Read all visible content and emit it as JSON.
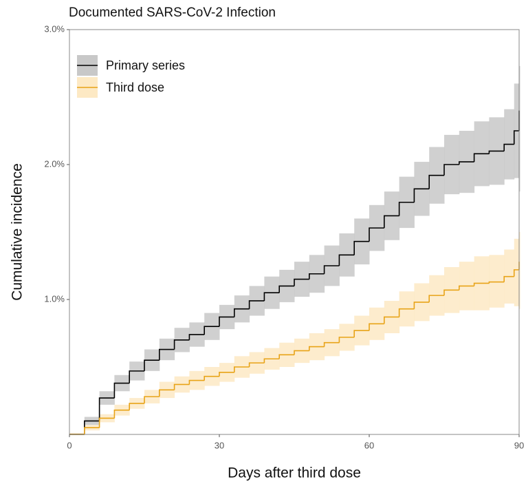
{
  "chart_data": {
    "type": "step",
    "title": "Documented SARS-CoV-2 Infection",
    "xlabel": "Days after third dose",
    "ylabel": "Cumulative incidence",
    "x": [
      0,
      3,
      6,
      9,
      12,
      15,
      18,
      21,
      24,
      27,
      30,
      33,
      36,
      39,
      42,
      45,
      48,
      51,
      54,
      57,
      60,
      63,
      66,
      69,
      72,
      75,
      78,
      81,
      84,
      87,
      89,
      90
    ],
    "series": [
      {
        "name": "Primary series",
        "color": "#000000",
        "band_color": "#c8c8c8",
        "values": [
          0,
          0.1,
          0.27,
          0.38,
          0.47,
          0.55,
          0.63,
          0.7,
          0.74,
          0.8,
          0.87,
          0.93,
          0.99,
          1.05,
          1.1,
          1.15,
          1.19,
          1.25,
          1.33,
          1.43,
          1.53,
          1.62,
          1.72,
          1.82,
          1.92,
          2.0,
          2.02,
          2.08,
          2.1,
          2.15,
          2.25,
          2.4
        ],
        "lower": [
          0,
          0.07,
          0.22,
          0.32,
          0.4,
          0.47,
          0.55,
          0.61,
          0.65,
          0.7,
          0.78,
          0.83,
          0.88,
          0.93,
          0.98,
          1.02,
          1.05,
          1.1,
          1.17,
          1.26,
          1.36,
          1.44,
          1.53,
          1.62,
          1.71,
          1.78,
          1.79,
          1.84,
          1.85,
          1.89,
          1.9,
          1.8
        ],
        "upper": [
          0.01,
          0.13,
          0.32,
          0.44,
          0.54,
          0.63,
          0.71,
          0.79,
          0.83,
          0.9,
          0.96,
          1.03,
          1.1,
          1.17,
          1.22,
          1.28,
          1.33,
          1.4,
          1.49,
          1.6,
          1.7,
          1.8,
          1.91,
          2.02,
          2.13,
          2.22,
          2.25,
          2.32,
          2.35,
          2.41,
          2.6,
          2.73
        ]
      },
      {
        "name": "Third dose",
        "color": "#e8a317",
        "band_color": "#fde9c4",
        "values": [
          0,
          0.05,
          0.12,
          0.18,
          0.23,
          0.28,
          0.33,
          0.37,
          0.4,
          0.43,
          0.46,
          0.5,
          0.53,
          0.56,
          0.59,
          0.62,
          0.65,
          0.68,
          0.72,
          0.77,
          0.82,
          0.87,
          0.93,
          0.98,
          1.03,
          1.07,
          1.1,
          1.12,
          1.13,
          1.17,
          1.22,
          1.28
        ],
        "lower": [
          0,
          0.03,
          0.09,
          0.14,
          0.19,
          0.23,
          0.27,
          0.31,
          0.33,
          0.36,
          0.39,
          0.42,
          0.45,
          0.48,
          0.5,
          0.53,
          0.55,
          0.58,
          0.62,
          0.66,
          0.7,
          0.75,
          0.8,
          0.84,
          0.88,
          0.9,
          0.92,
          0.92,
          0.94,
          0.97,
          0.95,
          0.93
        ],
        "upper": [
          0.01,
          0.07,
          0.15,
          0.22,
          0.27,
          0.33,
          0.39,
          0.43,
          0.47,
          0.5,
          0.53,
          0.58,
          0.61,
          0.64,
          0.68,
          0.71,
          0.75,
          0.78,
          0.82,
          0.88,
          0.94,
          0.99,
          1.06,
          1.12,
          1.18,
          1.24,
          1.28,
          1.32,
          1.33,
          1.37,
          1.45,
          1.5
        ]
      }
    ],
    "xlim": [
      0,
      90
    ],
    "xticks": [
      0,
      30,
      60,
      90
    ],
    "ylim": [
      0,
      3
    ],
    "yticks": [
      {
        "value": 1,
        "label": "1.0%"
      },
      {
        "value": 2,
        "label": "2.0%"
      },
      {
        "value": 3,
        "label": "3.0%"
      }
    ],
    "legend": "upper left"
  }
}
